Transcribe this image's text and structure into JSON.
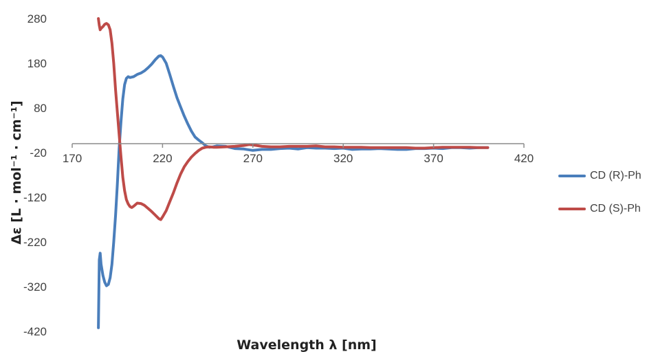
{
  "chart_data": {
    "type": "line",
    "title": "",
    "xlabel": "Wavelength λ [nm]",
    "ylabel": "Δε [L · mol⁻¹ · cm⁻¹]",
    "xlim": [
      170,
      420
    ],
    "ylim": [
      -420,
      280
    ],
    "xticks": [
      170,
      220,
      270,
      320,
      370,
      420
    ],
    "yticks": [
      280,
      180,
      80,
      -20,
      -120,
      -220,
      -320,
      -420
    ],
    "x_axis_crosses_at": 0,
    "grid": false,
    "legend_position": "right",
    "series": [
      {
        "name": "CD (R)-Ph",
        "color": "#4a7ebb",
        "points": [
          [
            184.5,
            -412
          ],
          [
            185,
            -260
          ],
          [
            185.5,
            -245
          ],
          [
            186,
            -270
          ],
          [
            187,
            -295
          ],
          [
            188,
            -310
          ],
          [
            189,
            -318
          ],
          [
            190,
            -315
          ],
          [
            191,
            -300
          ],
          [
            192,
            -270
          ],
          [
            193,
            -220
          ],
          [
            194,
            -160
          ],
          [
            195,
            -90
          ],
          [
            196,
            -10
          ],
          [
            197,
            50
          ],
          [
            198,
            100
          ],
          [
            199,
            132
          ],
          [
            200,
            146
          ],
          [
            201,
            150
          ],
          [
            202,
            148
          ],
          [
            204,
            150
          ],
          [
            206,
            155
          ],
          [
            208,
            158
          ],
          [
            210,
            163
          ],
          [
            212,
            170
          ],
          [
            214,
            178
          ],
          [
            216,
            188
          ],
          [
            218,
            196
          ],
          [
            219,
            197
          ],
          [
            220,
            194
          ],
          [
            222,
            180
          ],
          [
            224,
            155
          ],
          [
            226,
            128
          ],
          [
            228,
            103
          ],
          [
            230,
            82
          ],
          [
            232,
            62
          ],
          [
            234,
            44
          ],
          [
            236,
            28
          ],
          [
            238,
            15
          ],
          [
            240,
            8
          ],
          [
            242,
            2
          ],
          [
            244,
            -5
          ],
          [
            246,
            -8
          ],
          [
            248,
            -7
          ],
          [
            250,
            -5
          ],
          [
            255,
            -6
          ],
          [
            260,
            -11
          ],
          [
            265,
            -12
          ],
          [
            270,
            -15
          ],
          [
            275,
            -13
          ],
          [
            280,
            -13
          ],
          [
            285,
            -11
          ],
          [
            290,
            -10
          ],
          [
            295,
            -12
          ],
          [
            300,
            -9
          ],
          [
            305,
            -10
          ],
          [
            310,
            -10
          ],
          [
            315,
            -11
          ],
          [
            320,
            -10
          ],
          [
            325,
            -13
          ],
          [
            330,
            -12
          ],
          [
            335,
            -12
          ],
          [
            340,
            -11
          ],
          [
            345,
            -12
          ],
          [
            350,
            -13
          ],
          [
            355,
            -13
          ],
          [
            360,
            -11
          ],
          [
            365,
            -11
          ],
          [
            370,
            -10
          ],
          [
            375,
            -11
          ],
          [
            380,
            -9
          ],
          [
            385,
            -9
          ],
          [
            390,
            -10
          ],
          [
            395,
            -9
          ],
          [
            400,
            -9
          ]
        ]
      },
      {
        "name": "CD (S)-Ph",
        "color": "#be4b48",
        "points": [
          [
            184.5,
            280
          ],
          [
            185,
            265
          ],
          [
            185.5,
            255
          ],
          [
            186,
            258
          ],
          [
            187,
            262
          ],
          [
            188,
            267
          ],
          [
            189,
            269
          ],
          [
            190,
            266
          ],
          [
            191,
            255
          ],
          [
            192,
            225
          ],
          [
            193,
            180
          ],
          [
            194,
            120
          ],
          [
            195,
            70
          ],
          [
            196,
            20
          ],
          [
            197,
            -30
          ],
          [
            198,
            -75
          ],
          [
            199,
            -105
          ],
          [
            200,
            -125
          ],
          [
            201,
            -135
          ],
          [
            202,
            -141
          ],
          [
            203,
            -143
          ],
          [
            204,
            -140
          ],
          [
            206,
            -133
          ],
          [
            208,
            -134
          ],
          [
            210,
            -138
          ],
          [
            212,
            -145
          ],
          [
            214,
            -152
          ],
          [
            216,
            -160
          ],
          [
            218,
            -168
          ],
          [
            219,
            -170
          ],
          [
            220,
            -164
          ],
          [
            222,
            -150
          ],
          [
            224,
            -130
          ],
          [
            226,
            -110
          ],
          [
            228,
            -88
          ],
          [
            230,
            -68
          ],
          [
            232,
            -52
          ],
          [
            234,
            -40
          ],
          [
            236,
            -30
          ],
          [
            238,
            -22
          ],
          [
            240,
            -15
          ],
          [
            242,
            -10
          ],
          [
            244,
            -8
          ],
          [
            246,
            -7
          ],
          [
            248,
            -8
          ],
          [
            250,
            -8
          ],
          [
            255,
            -7
          ],
          [
            260,
            -6
          ],
          [
            265,
            -4
          ],
          [
            268,
            -2
          ],
          [
            270,
            -3
          ],
          [
            272,
            -4
          ],
          [
            275,
            -6
          ],
          [
            280,
            -7
          ],
          [
            285,
            -7
          ],
          [
            290,
            -6
          ],
          [
            295,
            -6
          ],
          [
            300,
            -6
          ],
          [
            305,
            -5
          ],
          [
            310,
            -7
          ],
          [
            315,
            -7
          ],
          [
            320,
            -8
          ],
          [
            325,
            -8
          ],
          [
            330,
            -8
          ],
          [
            335,
            -9
          ],
          [
            340,
            -9
          ],
          [
            345,
            -9
          ],
          [
            350,
            -9
          ],
          [
            355,
            -9
          ],
          [
            360,
            -10
          ],
          [
            365,
            -10
          ],
          [
            370,
            -9
          ],
          [
            375,
            -8
          ],
          [
            380,
            -8
          ],
          [
            385,
            -8
          ],
          [
            390,
            -8
          ],
          [
            395,
            -9
          ],
          [
            400,
            -9
          ]
        ]
      }
    ]
  }
}
